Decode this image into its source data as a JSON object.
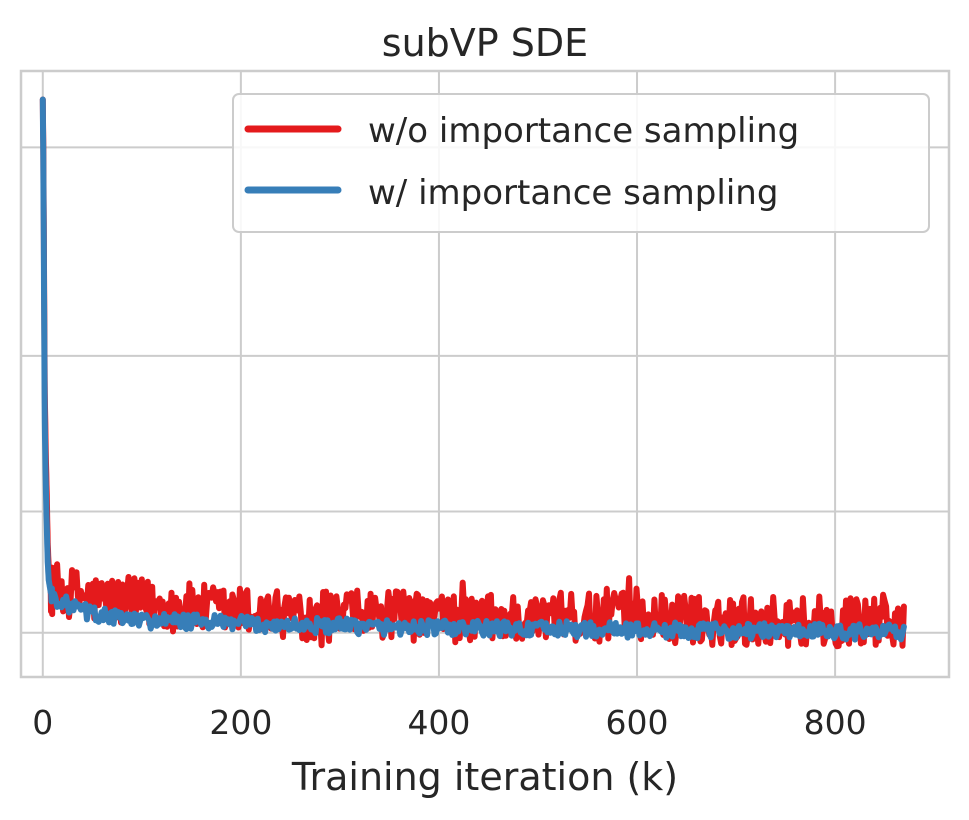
{
  "chart_data": {
    "type": "line",
    "title": "subVP SDE",
    "xlabel": "Training iteration (k)",
    "ylabel": "",
    "xlim": [
      -22,
      915
    ],
    "ylim": [
      0,
      100
    ],
    "xticks": [
      0,
      200,
      400,
      600,
      800
    ],
    "xtick_labels": [
      "0",
      "200",
      "400",
      "600",
      "800"
    ],
    "yticks": [
      7.3,
      27.3,
      53,
      87.4
    ],
    "yticks_labeled": false,
    "grid": true,
    "legend_position": "top-right",
    "series": [
      {
        "name": "w/o importance sampling",
        "color": "#e41a1c",
        "x": [
          0,
          0.5,
          1,
          1.5,
          2,
          3,
          4,
          5,
          6,
          8,
          10,
          15,
          20,
          30,
          40,
          50,
          60,
          70,
          80,
          100,
          120,
          150,
          180,
          200,
          230,
          260,
          300,
          330,
          360,
          400,
          430,
          460,
          500,
          530,
          560,
          575,
          590,
          600,
          620,
          650,
          680,
          700,
          730,
          760,
          800,
          820,
          840,
          870
        ],
        "y": [
          95.3,
          88,
          75,
          60,
          47,
          37,
          30,
          22,
          18,
          15,
          14,
          14.5,
          14.3,
          13.8,
          13.5,
          12.9,
          12.7,
          12.6,
          12.4,
          12.1,
          11.8,
          11.3,
          10.9,
          10.8,
          10.5,
          10.3,
          10.1,
          10.1,
          10,
          9.9,
          9.8,
          9.8,
          9.7,
          9.7,
          9.7,
          10.8,
          9.6,
          10.6,
          9.5,
          9.4,
          9.4,
          9.3,
          9.3,
          9.2,
          9.1,
          9,
          9,
          9
        ]
      },
      {
        "name": "w/ importance sampling",
        "color": "#377eb8",
        "x": [
          0,
          0.5,
          1,
          1.5,
          2,
          3,
          4,
          5,
          6,
          8,
          10,
          15,
          20,
          30,
          40,
          50,
          60,
          70,
          80,
          100,
          120,
          150,
          180,
          200,
          230,
          260,
          300,
          330,
          360,
          400,
          430,
          460,
          500,
          530,
          560,
          590,
          620,
          650,
          680,
          700,
          730,
          760,
          800,
          840,
          870
        ],
        "y": [
          95.3,
          86,
          72,
          56,
          42,
          32,
          25,
          19,
          16,
          14,
          13.2,
          12.8,
          12.3,
          11.5,
          11,
          10.4,
          10.1,
          9.9,
          9.6,
          9.3,
          9.2,
          9.1,
          8.9,
          8.8,
          8.6,
          8.5,
          8.4,
          8.3,
          8.2,
          8.1,
          8,
          8,
          7.9,
          7.9,
          7.8,
          7.8,
          7.7,
          7.7,
          7.6,
          7.6,
          7.6,
          7.5,
          7.5,
          7.4,
          7.4
        ]
      }
    ]
  }
}
